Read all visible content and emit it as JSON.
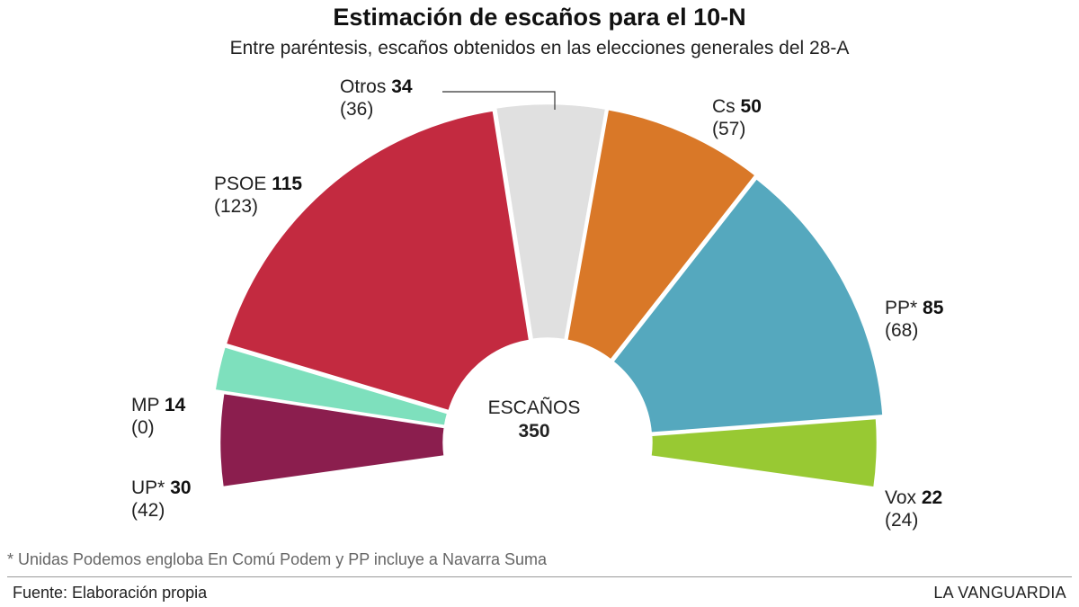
{
  "chart_data": {
    "type": "pie",
    "subtype": "hemicycle",
    "title": "Estimación de escaños para el 10-N",
    "subtitle": "Entre paréntesis, escaños obtenidos en las elecciones generales del 28-A",
    "center_label": "ESCAÑOS",
    "total": "350",
    "slices": [
      {
        "name": "UP*",
        "seats": 30,
        "previous": "(42)",
        "color": "#8b1e4e"
      },
      {
        "name": "MP",
        "seats": 14,
        "previous": "(0)",
        "color": "#7ee0bd"
      },
      {
        "name": "PSOE",
        "seats": 115,
        "previous": "(123)",
        "color": "#c32a40"
      },
      {
        "name": "Otros",
        "seats": 34,
        "previous": "(36)",
        "color": "#e0e0e0"
      },
      {
        "name": "Cs",
        "seats": 50,
        "previous": "(57)",
        "color": "#d97828"
      },
      {
        "name": "PP*",
        "seats": 85,
        "previous": "(68)",
        "color": "#55a8be"
      },
      {
        "name": "Vox",
        "seats": 22,
        "previous": "(24)",
        "color": "#98c933"
      }
    ]
  },
  "footnote": "* Unidas Podemos engloba En Comú Podem y PP incluye a Navarra Suma",
  "source": "Fuente: Elaboración propia",
  "brand": "LA VANGUARDIA"
}
